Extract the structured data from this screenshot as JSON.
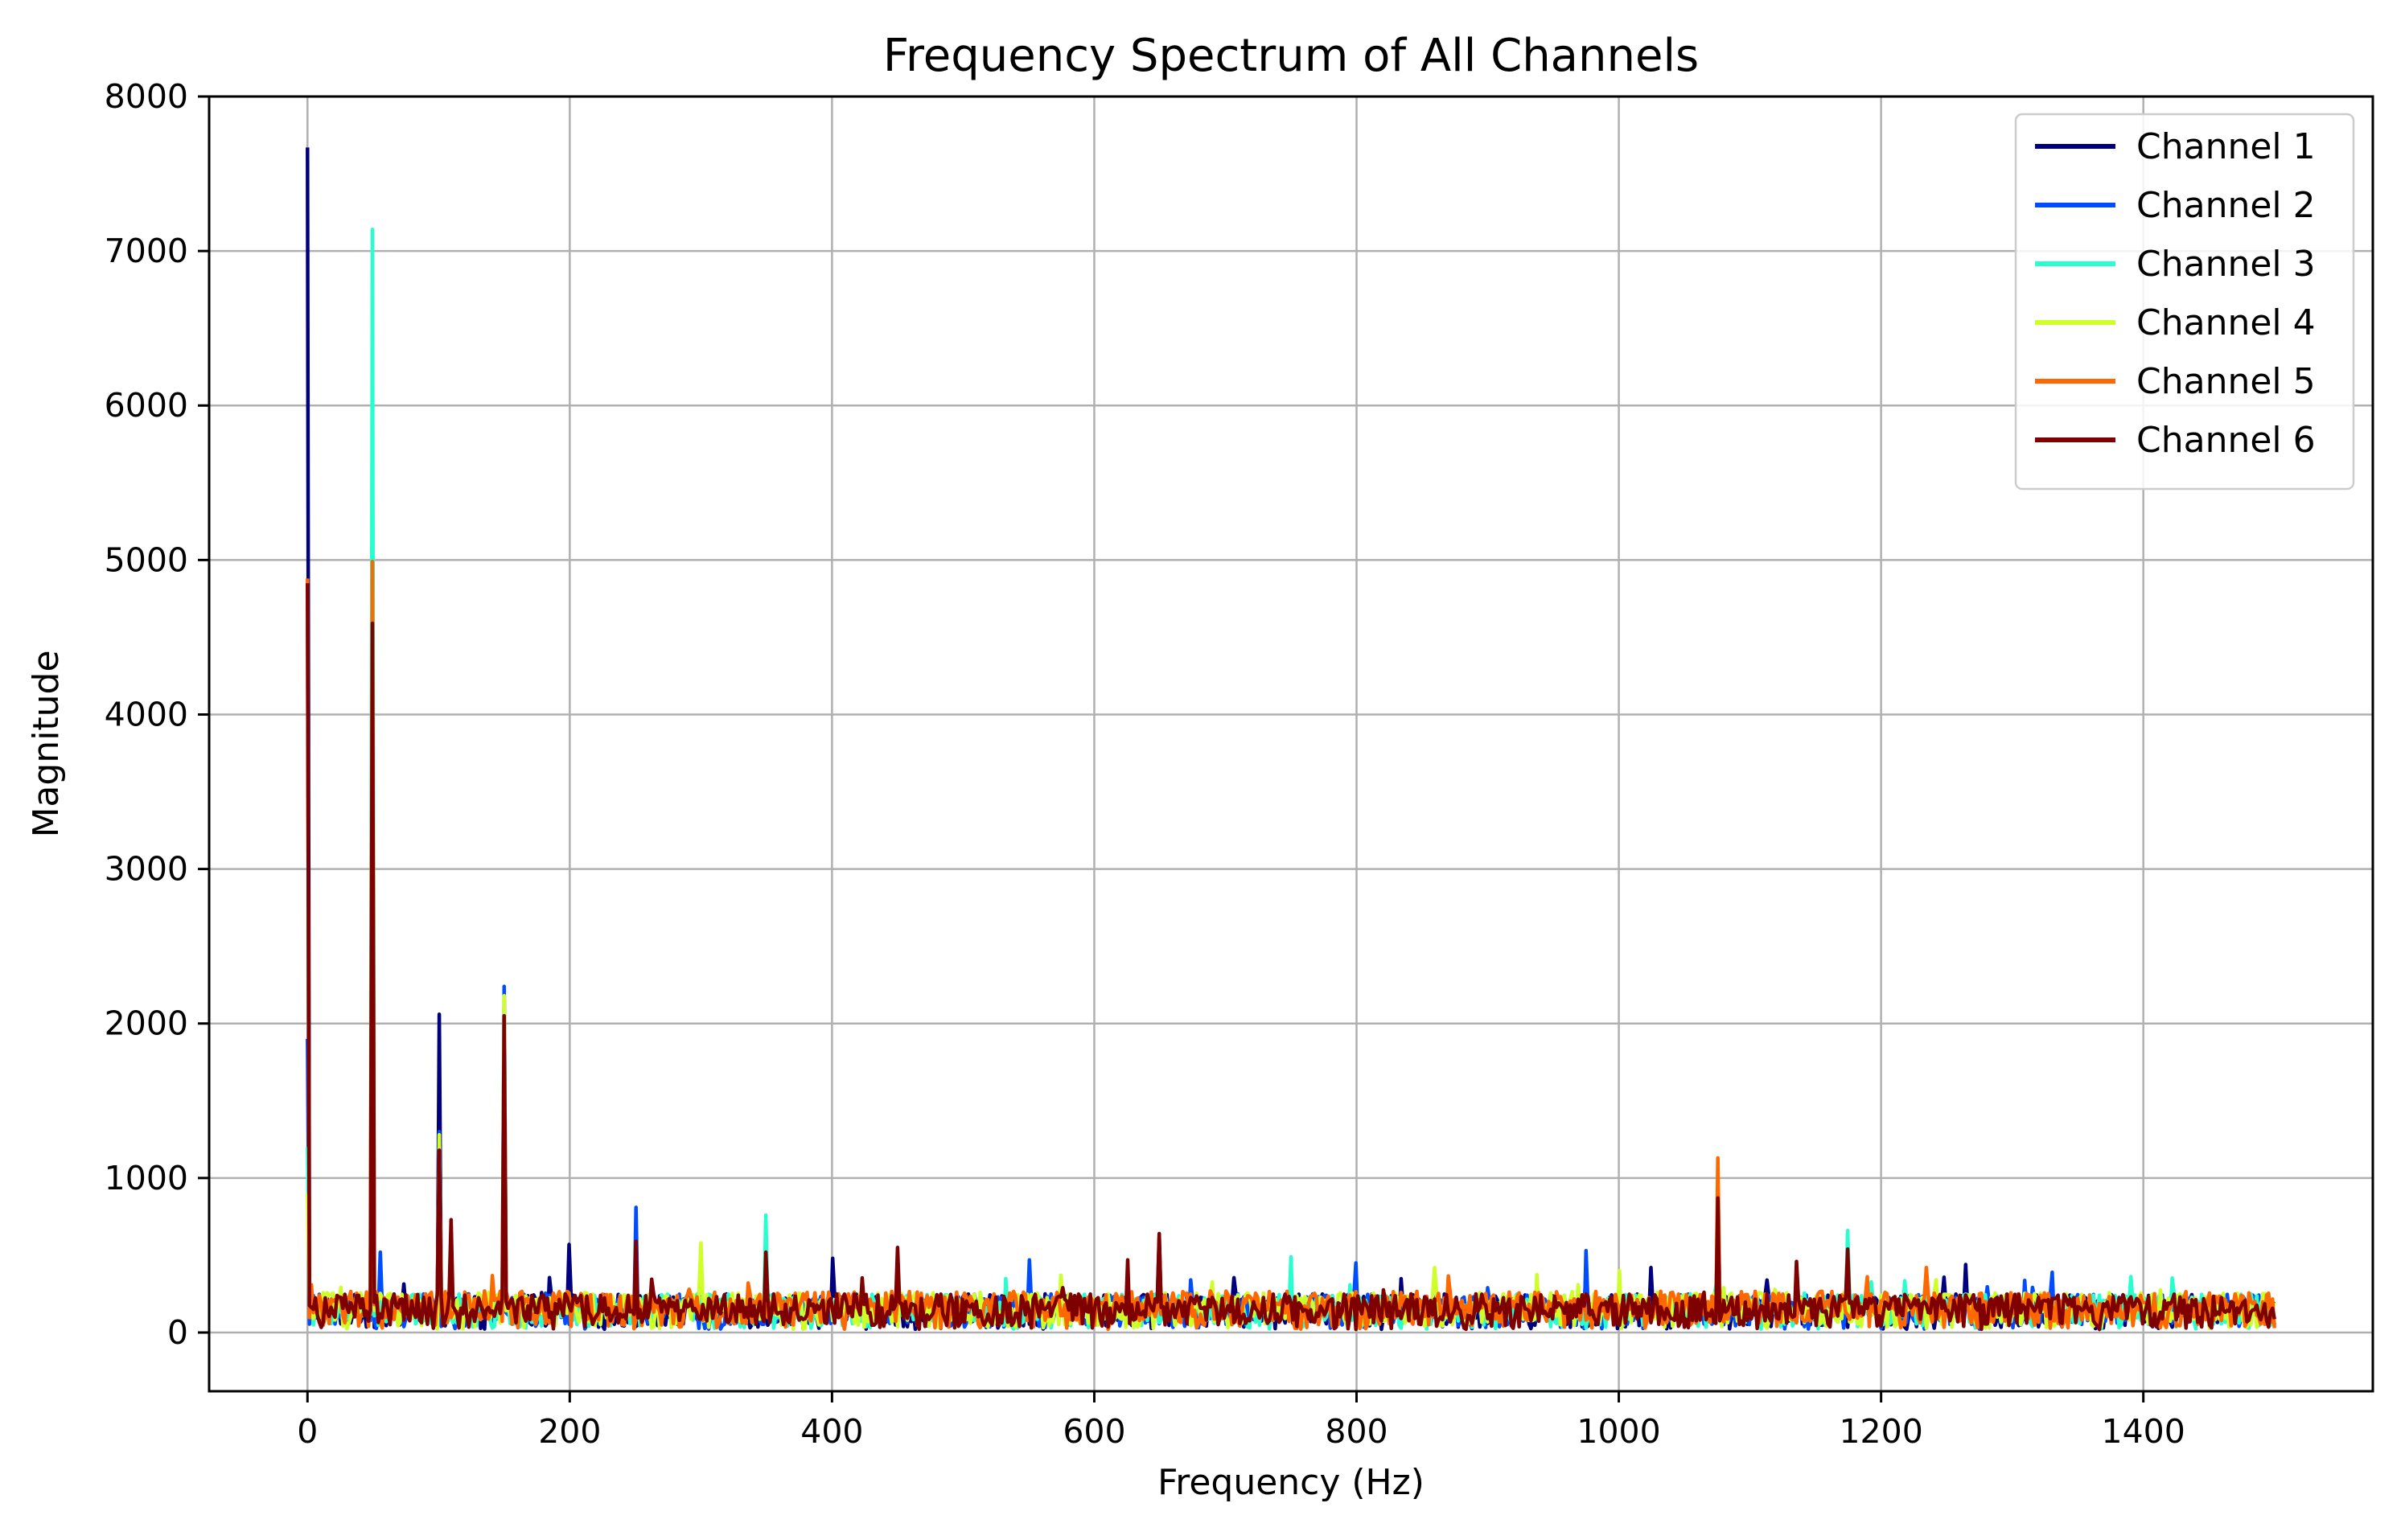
{
  "chart_data": {
    "type": "line",
    "title": "Frequency Spectrum of All Channels",
    "xlabel": "Frequency (Hz)",
    "ylabel": "Magnitude",
    "xlim": [
      -75,
      1575
    ],
    "ylim": [
      -380,
      8000
    ],
    "xticks": [
      0,
      200,
      400,
      600,
      800,
      1000,
      1200,
      1400
    ],
    "yticks": [
      0,
      1000,
      2000,
      3000,
      4000,
      5000,
      6000,
      7000,
      8000
    ],
    "grid": true,
    "legend_position": "top-right",
    "x_range": [
      0,
      1500
    ],
    "series": [
      {
        "name": "Channel 1",
        "color": "#00007f",
        "noise_floor": [
          20,
          250
        ],
        "peaks": [
          [
            0,
            7670
          ],
          [
            50,
            1700
          ],
          [
            100,
            2060
          ],
          [
            150,
            650
          ],
          [
            200,
            570
          ],
          [
            400,
            480
          ],
          [
            650,
            620
          ],
          [
            975,
            380
          ],
          [
            1025,
            420
          ],
          [
            1075,
            850
          ],
          [
            1265,
            440
          ]
        ]
      },
      {
        "name": "Channel 2",
        "color": "#004dff",
        "noise_floor": [
          20,
          250
        ],
        "peaks": [
          [
            0,
            1900
          ],
          [
            50,
            600
          ],
          [
            55,
            520
          ],
          [
            100,
            1300
          ],
          [
            150,
            2240
          ],
          [
            250,
            810
          ],
          [
            350,
            520
          ],
          [
            550,
            470
          ],
          [
            800,
            450
          ],
          [
            975,
            530
          ],
          [
            1175,
            520
          ],
          [
            1330,
            390
          ]
        ]
      },
      {
        "name": "Channel 3",
        "color": "#29ffce",
        "noise_floor": [
          20,
          250
        ],
        "peaks": [
          [
            0,
            1200
          ],
          [
            50,
            7140
          ],
          [
            100,
            1200
          ],
          [
            150,
            2100
          ],
          [
            350,
            760
          ],
          [
            750,
            490
          ],
          [
            1175,
            660
          ]
        ]
      },
      {
        "name": "Channel 4",
        "color": "#ceff29",
        "noise_floor": [
          20,
          260
        ],
        "peaks": [
          [
            0,
            900
          ],
          [
            50,
            4800
          ],
          [
            100,
            1280
          ],
          [
            150,
            2180
          ],
          [
            300,
            580
          ],
          [
            575,
            370
          ],
          [
            860,
            420
          ],
          [
            1000,
            400
          ]
        ]
      },
      {
        "name": "Channel 5",
        "color": "#ff6800",
        "noise_floor": [
          20,
          270
        ],
        "peaks": [
          [
            0,
            4880
          ],
          [
            50,
            4990
          ],
          [
            100,
            1150
          ],
          [
            150,
            1900
          ],
          [
            1075,
            1130
          ],
          [
            1235,
            420
          ]
        ]
      },
      {
        "name": "Channel 6",
        "color": "#7f0000",
        "noise_floor": [
          20,
          250
        ],
        "peaks": [
          [
            0,
            4850
          ],
          [
            50,
            4590
          ],
          [
            100,
            1180
          ],
          [
            110,
            730
          ],
          [
            150,
            2050
          ],
          [
            250,
            590
          ],
          [
            350,
            520
          ],
          [
            450,
            550
          ],
          [
            625,
            470
          ],
          [
            650,
            640
          ],
          [
            1075,
            870
          ],
          [
            1135,
            460
          ],
          [
            1175,
            540
          ]
        ]
      }
    ]
  }
}
